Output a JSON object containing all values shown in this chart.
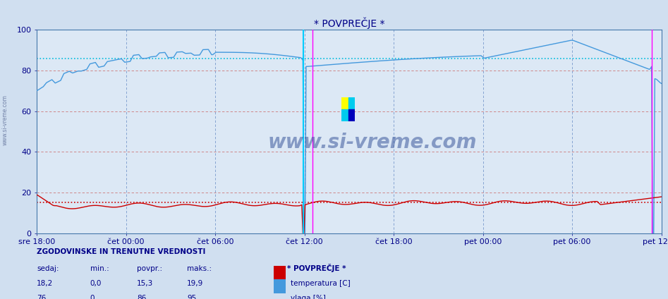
{
  "title": "* POVPREČJE *",
  "title_color": "#000088",
  "bg_color": "#d0dff0",
  "plot_bg_color": "#dce8f5",
  "grid_color_h": "#cc8888",
  "grid_color_v": "#8888cc",
  "ylim": [
    0,
    100
  ],
  "yticks": [
    0,
    20,
    40,
    60,
    80,
    100
  ],
  "xlabel_color": "#000088",
  "xtick_labels": [
    "sre 18:00",
    "čet 00:00",
    "čet 06:00",
    "čet 12:00",
    "čet 18:00",
    "pet 00:00",
    "pet 06:00",
    "pet 12:00"
  ],
  "n_points": 576,
  "temp_color": "#cc0000",
  "temp_avg_line_color": "#cc0000",
  "temp_avg": 15.3,
  "humidity_color": "#4499dd",
  "humidity_avg_line_color": "#00bbdd",
  "humidity_avg": 86,
  "watermark_text": "www.si-vreme.com",
  "watermark_color": "#1a3a8a",
  "watermark_alpha": 0.45,
  "sidebar_text": "www.si-vreme.com",
  "sidebar_color": "#334477",
  "footer_label1": "ZGODOVINSKE IN TRENUTNE VREDNOSTI",
  "footer_cols": [
    "sedaj:",
    "min.:",
    "povpr.:",
    "maks.:"
  ],
  "footer_temp_vals": [
    "18,2",
    "0,0",
    "15,3",
    "19,9"
  ],
  "footer_humid_vals": [
    "76",
    "0",
    "86",
    "95"
  ],
  "footer_legend1": "temperatura [C]",
  "footer_legend2": "vlaga [%]",
  "footer_color": "#000088"
}
